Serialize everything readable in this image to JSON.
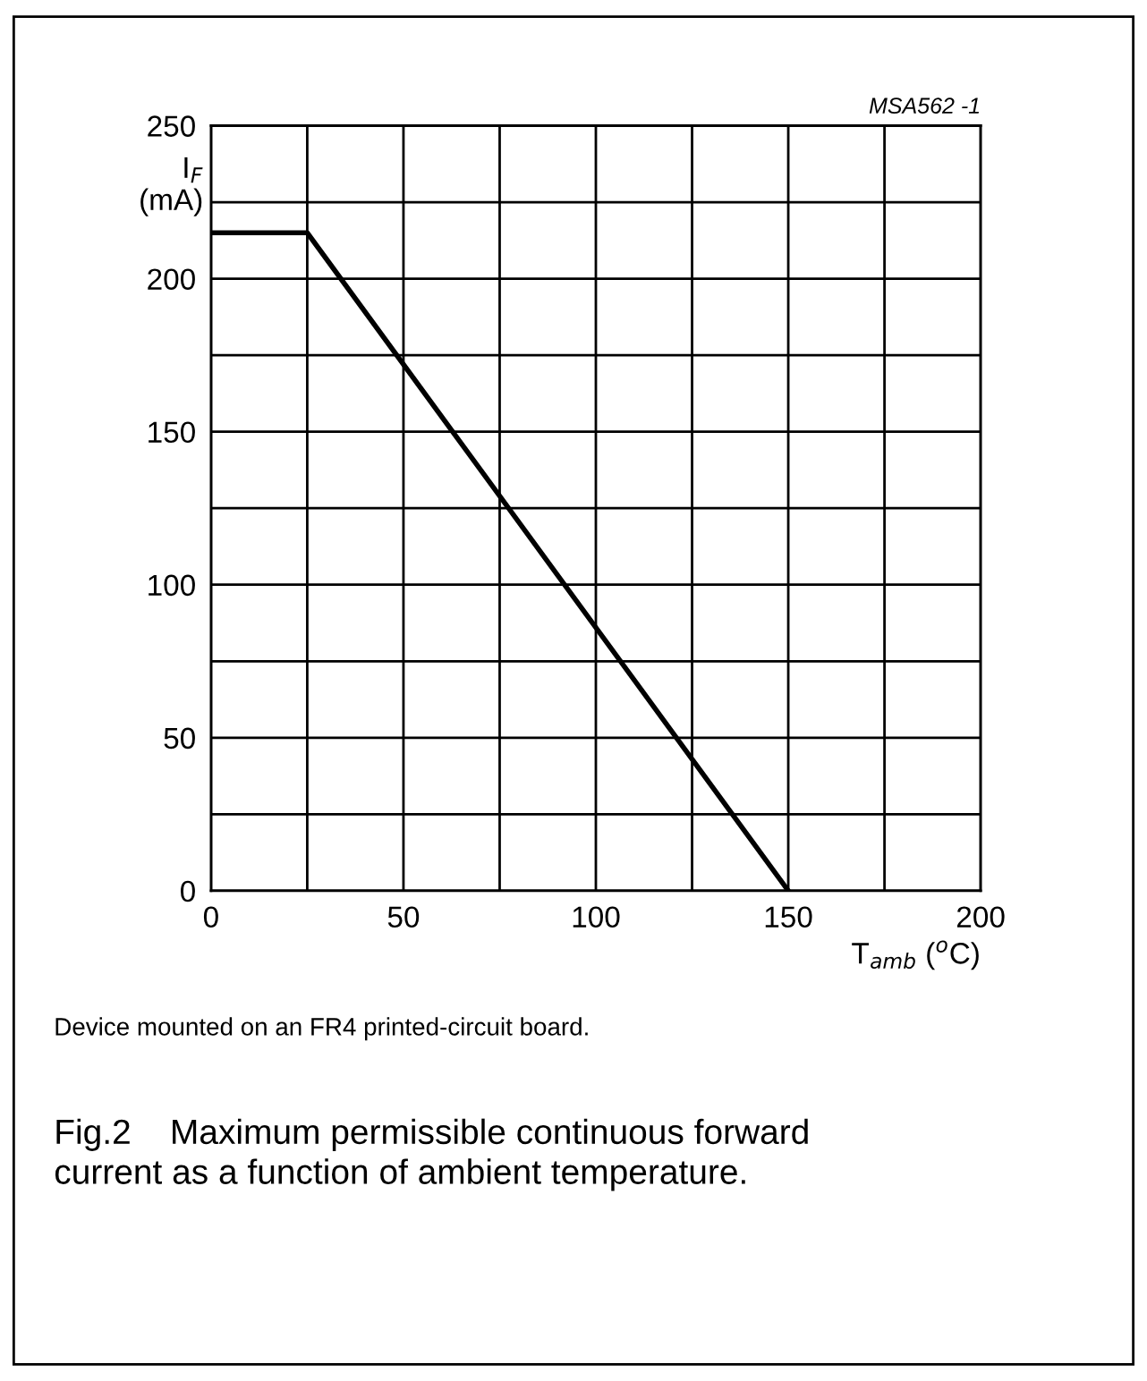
{
  "chart_data": {
    "type": "line",
    "title": "Fig.2    Maximum permissible continuous forward current as a function of ambient temperature.",
    "xlabel": "T$_{amb}$ ($^{o}$C)",
    "ylabel": "I$_{F}$\n(mA)",
    "annotations": [
      "MSA562 -1",
      "Device mounted on an FR4 printed-circuit board."
    ],
    "series": [
      {
        "color": "#000000",
        "x": [
          0,
          25,
          150
        ],
        "values": [
          215,
          215,
          0
        ]
      }
    ],
    "xlim": [
      0,
      200
    ],
    "ylim": [
      0,
      250
    ],
    "xticks": [
      0,
      {
        "value": 25,
        "label": null
      },
      50,
      {
        "value": 75,
        "label": null
      },
      100,
      {
        "value": 125,
        "label": null
      },
      150,
      {
        "value": 175,
        "label": null
      },
      200
    ],
    "yticks": [
      0,
      {
        "value": 25,
        "label": null
      },
      50,
      {
        "value": 75,
        "label": null
      },
      100,
      {
        "value": 125,
        "label": null
      },
      150,
      {
        "value": 175,
        "label": null
      },
      200,
      {
        "value": 225,
        "label": null
      },
      250
    ],
    "grid": true,
    "line_style": "solid",
    "marker": "none"
  }
}
